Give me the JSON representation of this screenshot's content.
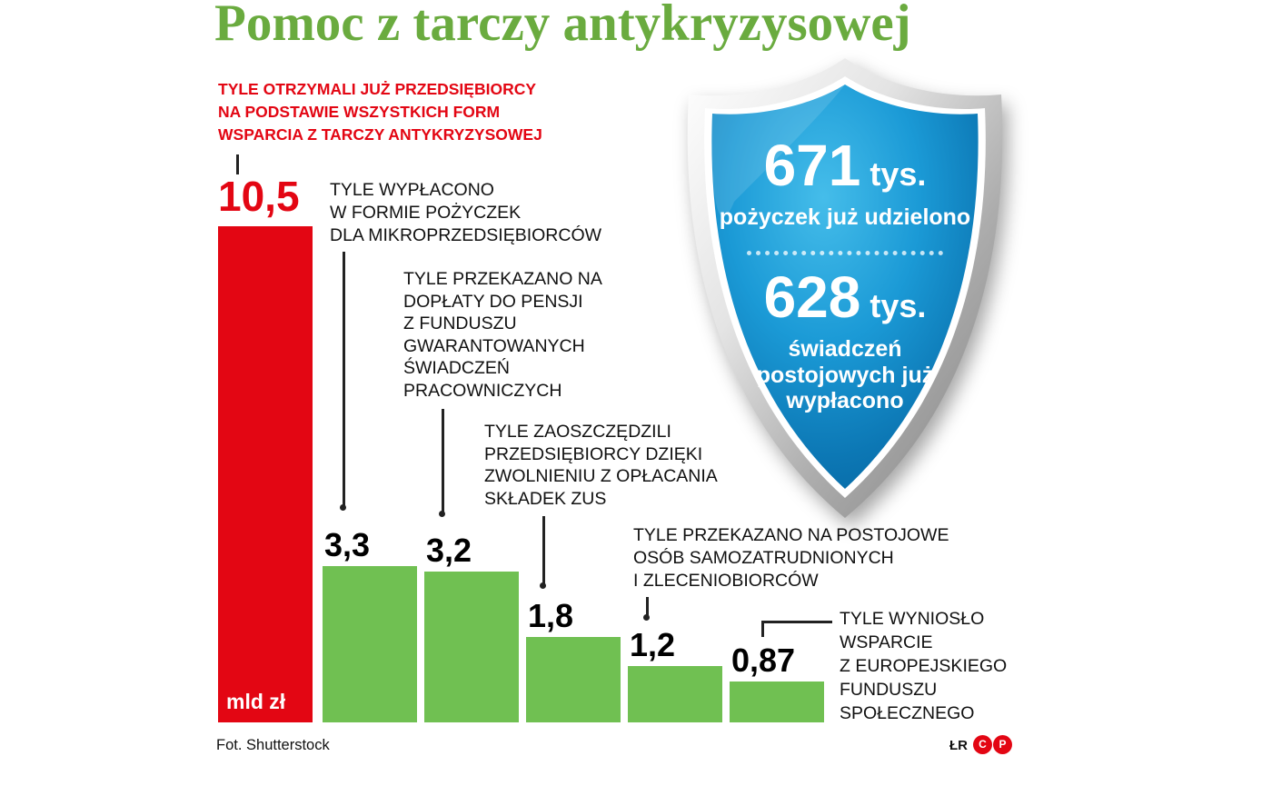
{
  "page": {
    "title": "Pomoc z tarczy antykryzysowej"
  },
  "chart_data": {
    "type": "bar",
    "title": "Pomoc z tarczy antykryzysowej",
    "unit_label": "mld zł",
    "ylim": [
      0,
      10.5
    ],
    "categories": [
      "wszystkie formy wsparcia",
      "pożyczki dla mikroprzedsiębiorców",
      "dopłaty do pensji z FGŚP",
      "zwolnienie ze składek ZUS",
      "postojowe",
      "wsparcie z EFS"
    ],
    "bars": [
      {
        "value": 10.5,
        "label": "10,5",
        "color": "#e30613",
        "annotation": "TYLE OTRZYMALI JUŻ PRZEDSIĘBIORCY\nNA PODSTAWIE WSZYSTKICH FORM\nWSPARCIA Z TARCZY ANTYKRYZYSOWEJ"
      },
      {
        "value": 3.3,
        "label": "3,3",
        "color": "#70c052",
        "annotation": "TYLE WYPŁACONO\nW FORMIE POŻYCZEK\nDLA MIKROPRZEDSIĘBIORCÓW"
      },
      {
        "value": 3.2,
        "label": "3,2",
        "color": "#70c052",
        "annotation": "TYLE PRZEKAZANO NA\nDOPŁATY DO PENSJI\nZ FUNDUSZU\nGWARANTOWANYCH\nŚWIADCZEŃ\nPRACOWNICZYCH"
      },
      {
        "value": 1.8,
        "label": "1,8",
        "color": "#70c052",
        "annotation": "TYLE ZAOSZCZĘDZILI\nPRZEDSIĘBIORCY DZIĘKI\nZWOLNIENIU Z OPŁACANIA\nSKŁADEK ZUS"
      },
      {
        "value": 1.2,
        "label": "1,2",
        "color": "#70c052",
        "annotation": "TYLE PRZEKAZANO NA POSTOJOWE\nOSÓB SAMOZATRUDNIONYCH\nI ZLECENIOBIORCÓW"
      },
      {
        "value": 0.87,
        "label": "0,87",
        "color": "#70c052",
        "annotation": "TYLE WYNIOSŁO\nWSPARCIE\nZ EUROPEJSKIEGO\nFUNDUSZU\nSPOŁECZNEGO"
      }
    ]
  },
  "shield": {
    "stat1": {
      "value": "671",
      "unit": "tys.",
      "label": "pożyczek już udzielono"
    },
    "stat2": {
      "value": "628",
      "unit": "tys.",
      "label": "świadczeń\npostojowych już\nwypłacono"
    }
  },
  "footer": {
    "photo_credit": "Fot. Shutterstock",
    "author_initials": "ŁR",
    "badge_c": "C",
    "badge_p": "P"
  },
  "colors": {
    "title_green": "#6aab3f",
    "bar_green": "#70c052",
    "accent_red": "#e30613",
    "shield_blue_light": "#45bdea",
    "shield_blue_dark": "#005a94",
    "frame_silver": "#b9b9b9"
  }
}
